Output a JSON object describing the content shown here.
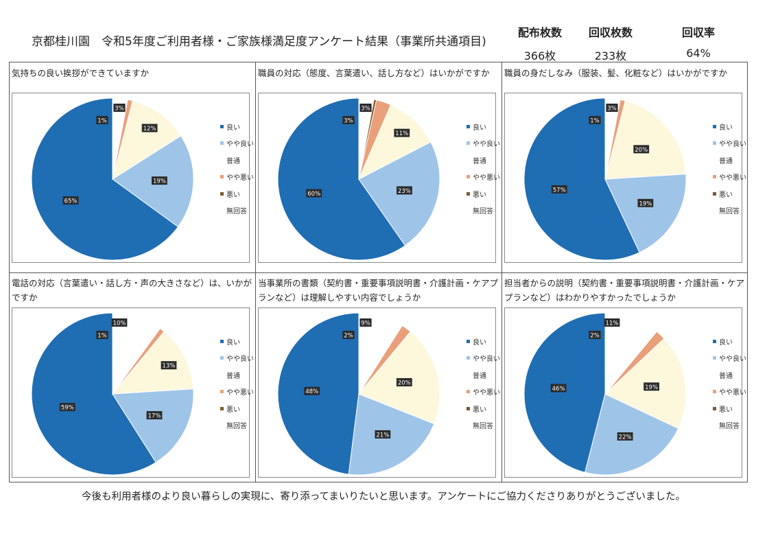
{
  "header": {
    "title": "京都桂川園　令和5年度ご利用者様・ご家族様満足度アンケート結果（事業所共通項目)",
    "stats": [
      {
        "label": "配布枚数",
        "value": "366枚"
      },
      {
        "label": "回収枚数",
        "value": "233枚"
      },
      {
        "label": "回収率",
        "value": "64%"
      }
    ]
  },
  "legend_labels": [
    "良い",
    "やや良い",
    "普通",
    "やや悪い",
    "悪い",
    "無回答"
  ],
  "colors": {
    "良い": "#1f6db3",
    "やや良い": "#9ec5e8",
    "普通": "#fdf7dc",
    "やや悪い": "#e9a07a",
    "悪い": "#7a5a2e",
    "無回答": "#ffffff",
    "label_bg": "#2b2b2b",
    "label_text": "#ffffff"
  },
  "chart_data": [
    {
      "type": "pie",
      "title": "気持ちの良い挨拶ができていますか",
      "categories": [
        "良い",
        "やや良い",
        "普通",
        "やや悪い",
        "悪い",
        "無回答"
      ],
      "values": [
        65,
        19,
        12,
        1,
        0,
        3
      ],
      "value_labels": [
        "65%",
        "19%",
        "12%",
        "1%",
        "",
        "3%"
      ],
      "legend": "right"
    },
    {
      "type": "pie",
      "title": "職員の対応（態度、言葉遣い、話し方など）はいかがですか",
      "categories": [
        "良い",
        "やや良い",
        "普通",
        "やや悪い",
        "悪い",
        "無回答"
      ],
      "values": [
        60,
        23,
        11,
        3,
        0.5,
        3
      ],
      "value_labels": [
        "60%",
        "23%",
        "11%",
        "3%",
        "",
        "3%"
      ],
      "legend": "right"
    },
    {
      "type": "pie",
      "title": "職員の身だしなみ（服装、髪、化粧など）はいかがですか",
      "categories": [
        "良い",
        "やや良い",
        "普通",
        "やや悪い",
        "悪い",
        "無回答"
      ],
      "values": [
        57,
        19,
        20,
        1,
        0,
        3
      ],
      "value_labels": [
        "57%",
        "19%",
        "20%",
        "1%",
        "",
        "3%"
      ],
      "legend": "right"
    },
    {
      "type": "pie",
      "title": "電話の対応（言葉遣い・話し方・声の大きさなど）は、いかがですか",
      "categories": [
        "良い",
        "やや良い",
        "普通",
        "やや悪い",
        "悪い",
        "無回答"
      ],
      "values": [
        59,
        17,
        13,
        1,
        0,
        10
      ],
      "value_labels": [
        "59%",
        "17%",
        "13%",
        "1%",
        "",
        "10%"
      ],
      "legend": "right"
    },
    {
      "type": "pie",
      "title": "当事業所の書類（契約書・重要事項説明書・介護計画・ケアプランなど）は理解しやすい内容でしょうか",
      "categories": [
        "良い",
        "やや良い",
        "普通",
        "やや悪い",
        "悪い",
        "無回答"
      ],
      "values": [
        48,
        21,
        20,
        2,
        0,
        9
      ],
      "value_labels": [
        "48%",
        "21%",
        "20%",
        "2%",
        "",
        "9%"
      ],
      "legend": "right"
    },
    {
      "type": "pie",
      "title": "担当者からの説明（契約書・重要事項説明書・介護計画・ケアプランなど）はわかりやすかったでしょうか",
      "categories": [
        "良い",
        "やや良い",
        "普通",
        "やや悪い",
        "悪い",
        "無回答"
      ],
      "values": [
        46,
        22,
        19,
        2,
        0,
        11
      ],
      "value_labels": [
        "46%",
        "22%",
        "19%",
        "2%",
        "",
        "11%"
      ],
      "legend": "right"
    }
  ],
  "footer": "今後も利用者様のより良い暮らしの実現に、寄り添ってまいりたいと思います。アンケートにご協力くださりありがとうございました。"
}
